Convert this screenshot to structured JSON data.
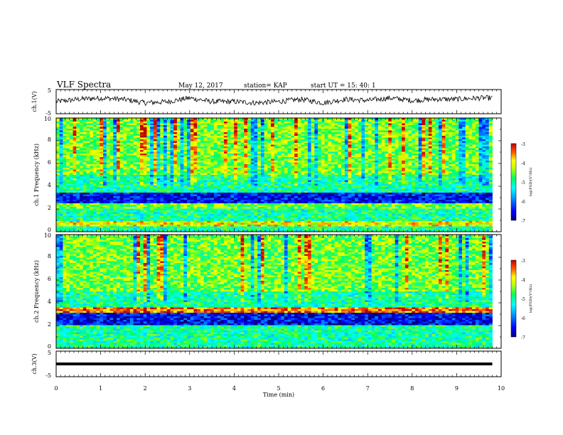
{
  "header": {
    "title": "VLF Spectra",
    "date": "May 12, 2017",
    "station": "station= KAP",
    "start_time": "start  UT =   15: 40: 1"
  },
  "colors": {
    "waveform": "#000000",
    "colormap": [
      "#000080",
      "#0000ff",
      "#0080ff",
      "#00ffff",
      "#00ff80",
      "#80ff00",
      "#ffff00",
      "#ff8000",
      "#ff0000",
      "#800000"
    ]
  },
  "chart_data": [
    {
      "type": "line",
      "name": "ch1-waveform",
      "ylabel": "ch.1(V)",
      "ylim": [
        -5,
        5
      ],
      "yticks": [
        "5",
        "-5"
      ],
      "x": [
        0,
        0.5,
        1,
        1.5,
        2,
        2.5,
        3,
        3.5,
        4,
        4.5,
        5,
        5.5,
        6,
        6.5,
        7,
        7.5,
        8,
        8.5,
        9,
        9.5,
        9.8
      ],
      "y": [
        0,
        1,
        1.5,
        1,
        -0.5,
        0,
        1.5,
        0,
        0,
        -0.5,
        0,
        1,
        -0.5,
        1,
        0.5,
        1.5,
        0.5,
        1,
        1,
        1.5,
        1.5
      ]
    },
    {
      "type": "heatmap",
      "name": "ch1-spectrogram",
      "ylabel": "ch.1 Frequency (kHz)",
      "ylim": [
        0,
        10
      ],
      "yticks": [
        "0",
        "2",
        "4",
        "6",
        "8",
        "10"
      ],
      "colorbar": {
        "label": "log(PSD)(V²/Hz)",
        "range": [
          -7,
          -3
        ],
        "ticks": [
          "-3",
          "-4",
          "-5",
          "-6",
          "-7"
        ]
      },
      "bands": [
        {
          "from": 0,
          "to": 0.5,
          "level": -5
        },
        {
          "from": 0.5,
          "to": 1,
          "level": -4
        },
        {
          "from": 1,
          "to": 2,
          "level": -5
        },
        {
          "from": 2,
          "to": 2.5,
          "level": -4.5
        },
        {
          "from": 2.5,
          "to": 3.5,
          "level": -6.5
        },
        {
          "from": 3.5,
          "to": 5,
          "level": -5
        },
        {
          "from": 5,
          "to": 6,
          "level": -4.5
        },
        {
          "from": 6,
          "to": 10,
          "level": -4.5
        }
      ]
    },
    {
      "type": "heatmap",
      "name": "ch2-spectrogram",
      "ylabel": "ch.2 Frequency (kHz)",
      "ylim": [
        0,
        10
      ],
      "yticks": [
        "0",
        "2",
        "4",
        "6",
        "8",
        "10"
      ],
      "colorbar": {
        "label": "log(PSD)(V²/Hz)",
        "range": [
          -7,
          -3
        ],
        "ticks": [
          "-3",
          "-4",
          "-5",
          "-6",
          "-7"
        ]
      },
      "bands": [
        {
          "from": 0,
          "to": 0.5,
          "level": -5
        },
        {
          "from": 0.5,
          "to": 2,
          "level": -5
        },
        {
          "from": 2,
          "to": 3.2,
          "level": -6.5
        },
        {
          "from": 3.2,
          "to": 3.6,
          "level": -3.5
        },
        {
          "from": 3.6,
          "to": 5,
          "level": -5
        },
        {
          "from": 5,
          "to": 10,
          "level": -4.5
        }
      ]
    },
    {
      "type": "line",
      "name": "ch3-waveform",
      "ylabel": "ch.3(V)",
      "ylim": [
        -5,
        5
      ],
      "yticks": [
        "5",
        "-5"
      ],
      "x": [
        0,
        9.8
      ],
      "y": [
        0,
        0
      ]
    }
  ],
  "time_axis": {
    "xlabel": "Time (min)",
    "xlim": [
      0,
      10
    ],
    "ticks": [
      "0",
      "1",
      "2",
      "3",
      "4",
      "5",
      "6",
      "7",
      "8",
      "9",
      "10"
    ]
  }
}
